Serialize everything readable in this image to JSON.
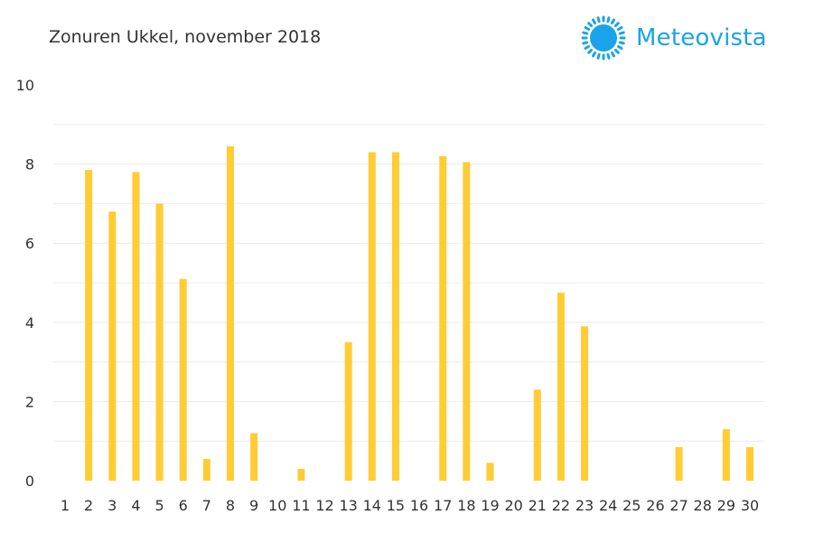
{
  "brand": {
    "name": "Meteovista",
    "logo_icon": "sun-icon",
    "color": "#1aa3ea"
  },
  "chart_data": {
    "type": "bar",
    "title": "Zonuren Ukkel, november 2018",
    "xlabel": "",
    "ylabel": "",
    "categories": [
      "1",
      "2",
      "3",
      "4",
      "5",
      "6",
      "7",
      "8",
      "9",
      "10",
      "11",
      "12",
      "13",
      "14",
      "15",
      "16",
      "17",
      "18",
      "19",
      "20",
      "21",
      "22",
      "23",
      "24",
      "25",
      "26",
      "27",
      "28",
      "29",
      "30"
    ],
    "values": [
      0,
      7.85,
      6.8,
      7.8,
      7.0,
      5.1,
      0.55,
      8.45,
      1.2,
      0,
      0.3,
      0,
      3.5,
      8.3,
      8.3,
      0,
      8.2,
      8.05,
      0.45,
      0,
      2.3,
      4.75,
      3.9,
      0,
      0,
      0,
      0.85,
      0,
      1.3,
      0.85
    ],
    "ylim": [
      0,
      10
    ],
    "yticks": [
      0,
      2,
      4,
      6,
      8,
      10
    ],
    "grid": true,
    "bar_color": "#ffcc33",
    "legend": "none"
  }
}
